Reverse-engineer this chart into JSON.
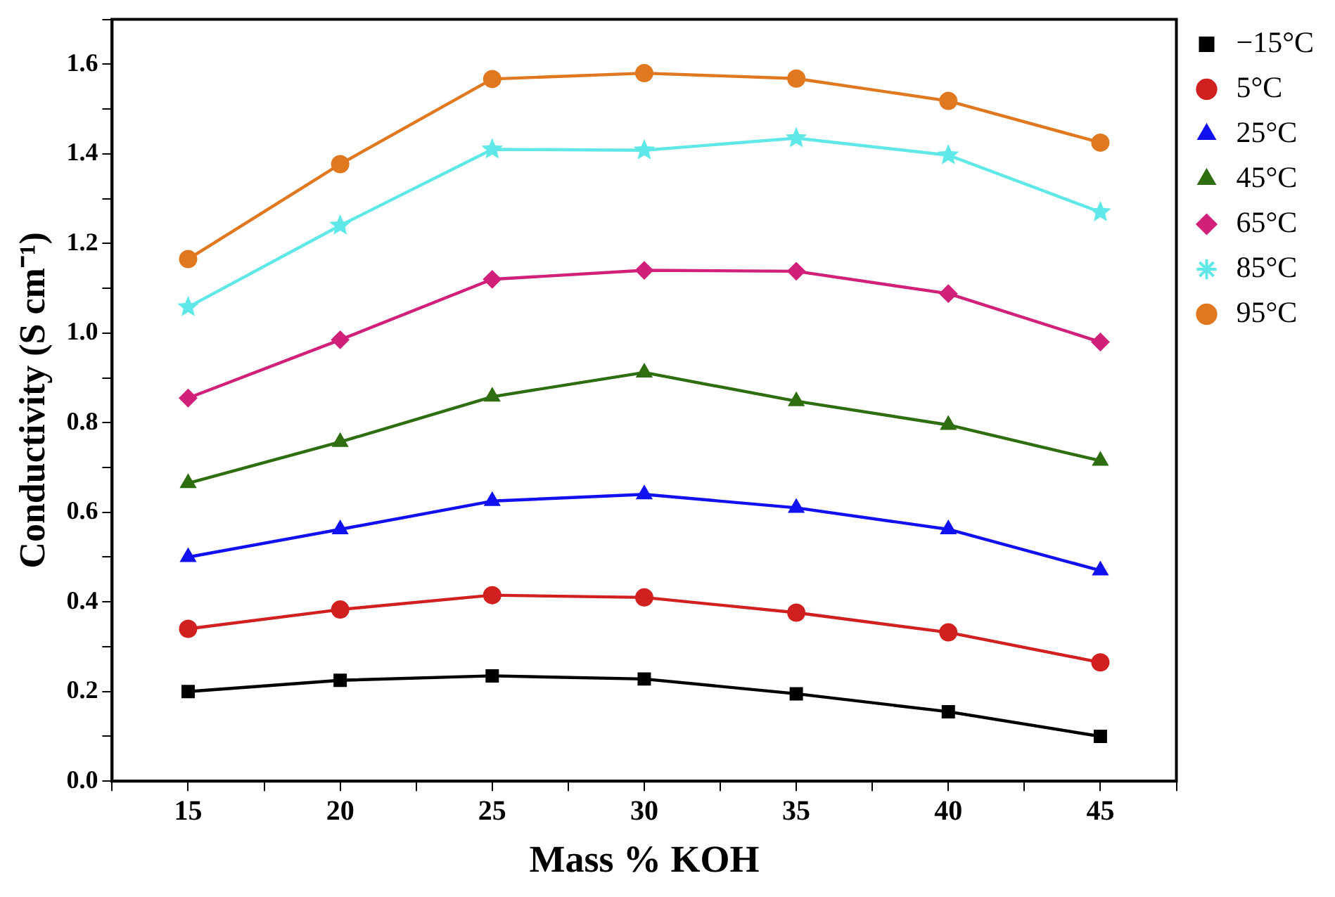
{
  "chart_data": {
    "type": "line",
    "xlabel": "Mass % KOH",
    "ylabel": "Conductivity (S cm⁻¹)",
    "x": [
      15,
      20,
      25,
      30,
      35,
      40,
      45
    ],
    "series": [
      {
        "name": "−15°C",
        "color": "#000000",
        "marker": "square",
        "values": [
          0.2,
          0.225,
          0.235,
          0.228,
          0.195,
          0.155,
          0.1
        ]
      },
      {
        "name": "5°C",
        "color": "#d02020",
        "marker": "circle",
        "values": [
          0.34,
          0.383,
          0.415,
          0.41,
          0.376,
          0.332,
          0.265
        ]
      },
      {
        "name": "25°C",
        "color": "#1010f0",
        "marker": "triangle",
        "values": [
          0.5,
          0.562,
          0.625,
          0.64,
          0.61,
          0.562,
          0.47
        ]
      },
      {
        "name": "45°C",
        "color": "#2e6e10",
        "marker": "triangle",
        "values": [
          0.665,
          0.757,
          0.858,
          0.912,
          0.848,
          0.795,
          0.715
        ]
      },
      {
        "name": "65°C",
        "color": "#d0207a",
        "marker": "diamond",
        "values": [
          0.855,
          0.985,
          1.12,
          1.14,
          1.138,
          1.088,
          0.98
        ]
      },
      {
        "name": "85°C",
        "color": "#60e8e8",
        "marker": "star",
        "values": [
          1.058,
          1.24,
          1.41,
          1.408,
          1.435,
          1.397,
          1.27
        ]
      },
      {
        "name": "95°C",
        "color": "#e07820",
        "marker": "circle",
        "values": [
          1.165,
          1.377,
          1.567,
          1.58,
          1.568,
          1.518,
          1.425
        ]
      }
    ],
    "xlim": [
      12.5,
      47.5
    ],
    "xticks": [
      {
        "value": 12.5,
        "label": null
      },
      15,
      {
        "value": 17.5,
        "label": null
      },
      20,
      {
        "value": 22.5,
        "label": null
      },
      25,
      {
        "value": 27.5,
        "label": null
      },
      30,
      {
        "value": 32.5,
        "label": null
      },
      35,
      {
        "value": 37.5,
        "label": null
      },
      40,
      {
        "value": 42.5,
        "label": null
      },
      45,
      {
        "value": 47.5,
        "label": null
      }
    ],
    "ylim": [
      0,
      1.7
    ],
    "yticks": [
      {
        "value": 0,
        "label": "0.0"
      },
      {
        "value": 0.1,
        "label": null
      },
      {
        "value": 0.2,
        "label": "0.2"
      },
      {
        "value": 0.3,
        "label": null
      },
      {
        "value": 0.4,
        "label": "0.4"
      },
      {
        "value": 0.5,
        "label": null
      },
      {
        "value": 0.6,
        "label": "0.6"
      },
      {
        "value": 0.7,
        "label": null
      },
      {
        "value": 0.8,
        "label": "0.8"
      },
      {
        "value": 0.9,
        "label": null
      },
      {
        "value": 1.0,
        "label": "1.0"
      },
      {
        "value": 1.1,
        "label": null
      },
      {
        "value": 1.2,
        "label": "1.2"
      },
      {
        "value": 1.3,
        "label": null
      },
      {
        "value": 1.4,
        "label": "1.4"
      },
      {
        "value": 1.5,
        "label": null
      },
      {
        "value": 1.6,
        "label": "1.6"
      },
      {
        "value": 1.7,
        "label": null
      }
    ],
    "grid": false,
    "legend": "right",
    "line_style": "solid"
  }
}
